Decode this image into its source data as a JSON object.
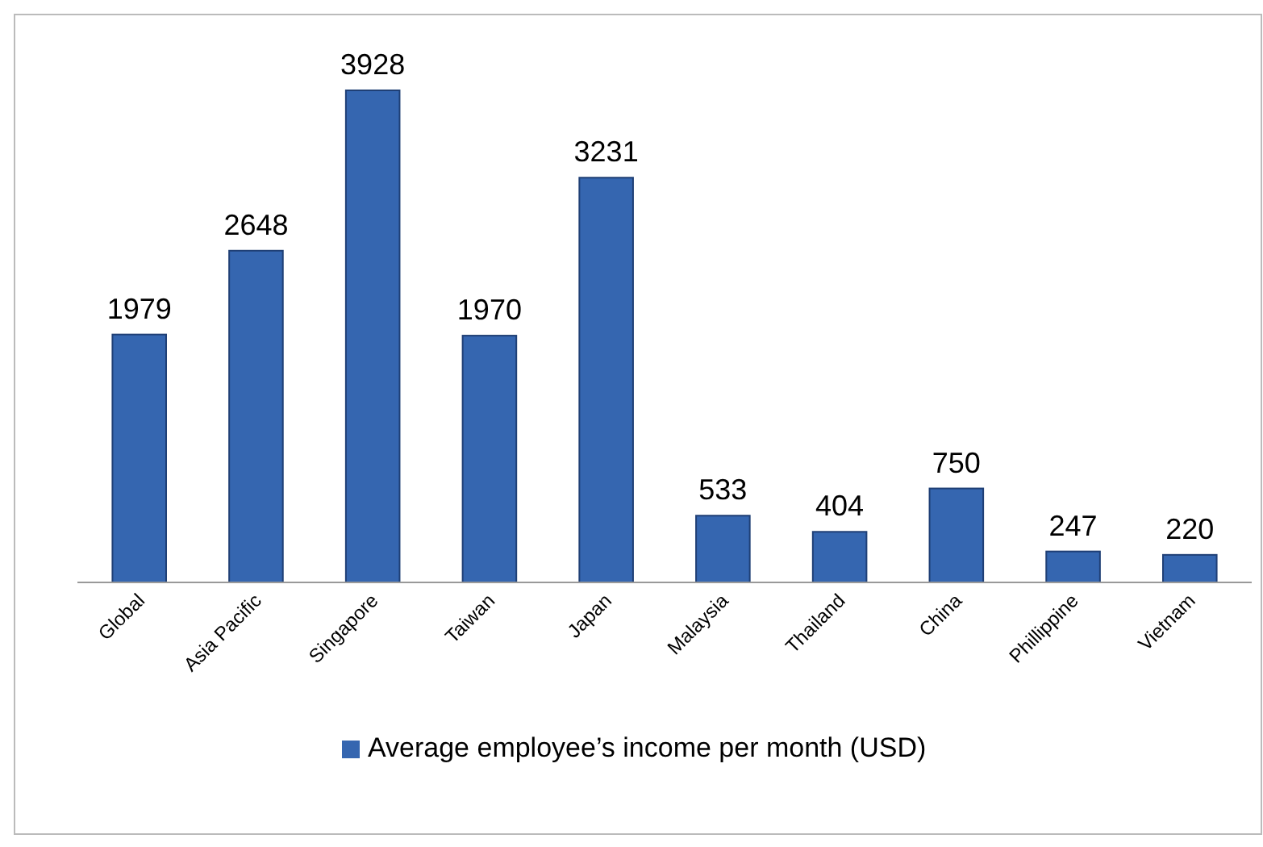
{
  "chart_data": {
    "type": "bar",
    "categories": [
      "Global",
      "Asia Pacific",
      "Singapore",
      "Taiwan",
      "Japan",
      "Malaysia",
      "Thailand",
      "China",
      "Phillippine",
      "Vietnam"
    ],
    "series": [
      {
        "name": "Average employee’s income per month (USD)",
        "color": "#3566b0",
        "values": [
          1979,
          2648,
          3928,
          1970,
          3231,
          533,
          404,
          750,
          247,
          220
        ]
      }
    ],
    "data_labels": true,
    "legend": "bottom"
  }
}
